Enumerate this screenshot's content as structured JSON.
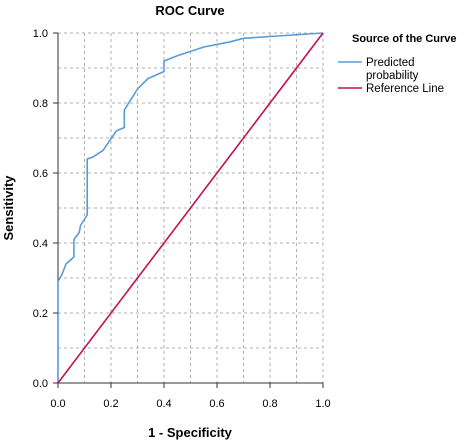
{
  "chart_data": {
    "type": "line",
    "title": "ROC Curve",
    "xlabel": "1 - Specificity",
    "ylabel": "Sensitivity",
    "xlim": [
      0,
      1
    ],
    "ylim": [
      0,
      1
    ],
    "xticks": [
      "0.0",
      "0.2",
      "0.4",
      "0.6",
      "0.8",
      "1.0"
    ],
    "yticks": [
      "0.0",
      "0.2",
      "0.4",
      "0.6",
      "0.8",
      "1.0"
    ],
    "grid": true,
    "legend": {
      "title": "Source of the Curve",
      "placement": "right"
    },
    "series": [
      {
        "name": "Predicted probability",
        "name_lines": [
          "Predicted",
          "probability"
        ],
        "color": "#5b9bd5",
        "points": [
          [
            0.0,
            0.0
          ],
          [
            0.0,
            0.29
          ],
          [
            0.015,
            0.31
          ],
          [
            0.03,
            0.34
          ],
          [
            0.06,
            0.36
          ],
          [
            0.06,
            0.41
          ],
          [
            0.08,
            0.43
          ],
          [
            0.085,
            0.45
          ],
          [
            0.11,
            0.48
          ],
          [
            0.11,
            0.64
          ],
          [
            0.13,
            0.645
          ],
          [
            0.17,
            0.665
          ],
          [
            0.22,
            0.72
          ],
          [
            0.25,
            0.73
          ],
          [
            0.25,
            0.78
          ],
          [
            0.3,
            0.84
          ],
          [
            0.34,
            0.87
          ],
          [
            0.4,
            0.89
          ],
          [
            0.4,
            0.92
          ],
          [
            0.45,
            0.935
          ],
          [
            0.55,
            0.96
          ],
          [
            0.65,
            0.975
          ],
          [
            0.7,
            0.985
          ],
          [
            0.8,
            0.99
          ],
          [
            1.0,
            1.0
          ]
        ]
      },
      {
        "name": "Reference Line",
        "name_lines": [
          "Reference Line"
        ],
        "color": "#c0144c",
        "points": [
          [
            0.0,
            0.0
          ],
          [
            1.0,
            1.0
          ]
        ]
      }
    ]
  }
}
